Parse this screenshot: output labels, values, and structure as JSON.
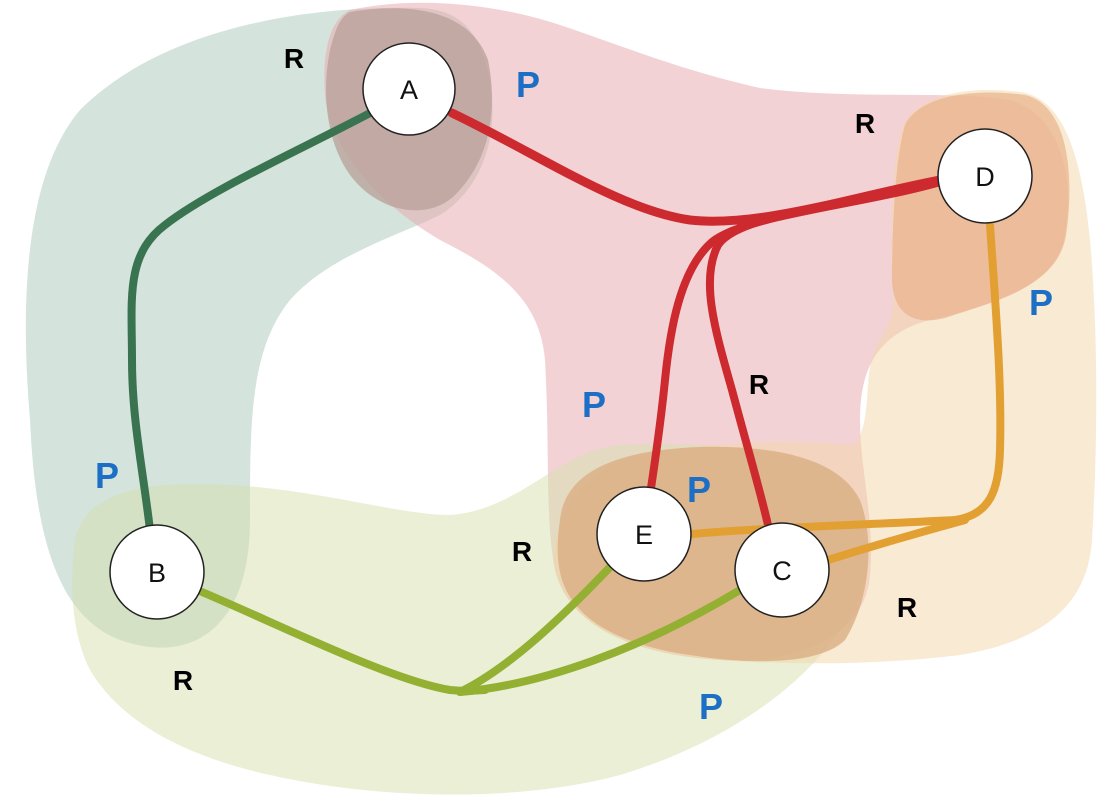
{
  "colors": {
    "green_region": "#a9c8b7",
    "red_region": "#e8a6ab",
    "olive_region": "#d5e0ad",
    "orange_region": "#f4d5a8",
    "overlap_ae": "#b8a098",
    "overlap_d": "#e9b28a",
    "overlap_ec": "#d9ae83",
    "edge_green": "#3a7350",
    "edge_red": "#cc2a2e",
    "edge_olive": "#93b032",
    "edge_orange": "#e3a032",
    "node_fill": "#ffffff",
    "node_stroke": "#222222",
    "tag_p": "#1c6fc4",
    "tag_r": "#000000"
  },
  "nodes": [
    {
      "id": "A",
      "label": "A"
    },
    {
      "id": "B",
      "label": "B"
    },
    {
      "id": "C",
      "label": "C"
    },
    {
      "id": "D",
      "label": "D"
    },
    {
      "id": "E",
      "label": "E"
    }
  ],
  "edges": [
    {
      "id": "a-b",
      "from": "A",
      "to": "B",
      "color": "edge_green"
    },
    {
      "id": "a-d",
      "from": "A",
      "to": "D",
      "color": "edge_red"
    },
    {
      "id": "d-e",
      "from": "D",
      "to": "E",
      "color": "edge_red"
    },
    {
      "id": "d-c",
      "from": "D",
      "to": "C",
      "color": "edge_red"
    },
    {
      "id": "d-ec",
      "from": "D",
      "to": "E,C",
      "color": "edge_orange"
    },
    {
      "id": "b-ec",
      "from": "B",
      "to": "E,C",
      "color": "edge_olive"
    }
  ],
  "tags": {
    "r_top_left": "R",
    "p_top": "P",
    "r_top_right": "R",
    "p_right": "P",
    "r_middle": "R",
    "p_center_left": "P",
    "p_near_e": "P",
    "p_left": "P",
    "r_near_e": "R",
    "r_bottom_left": "R",
    "r_bottom_right": "R",
    "p_bottom": "P"
  }
}
